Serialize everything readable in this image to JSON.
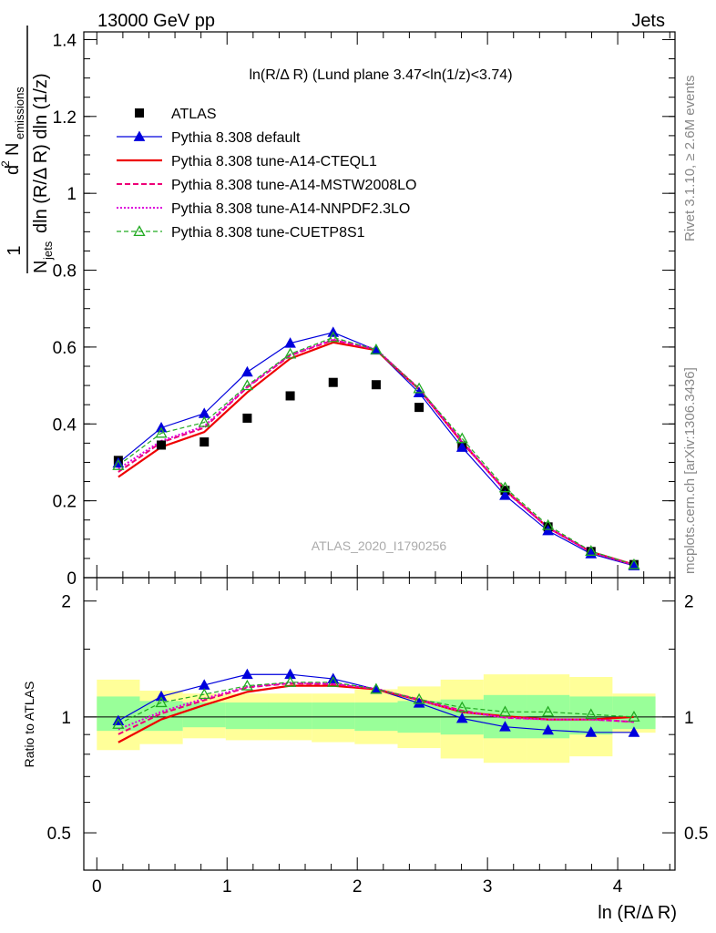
{
  "header": {
    "left": "13000 GeV pp",
    "right": "Jets",
    "side_top": "Rivet 3.1.10, ≥ 2.6M events",
    "side_bottom": "mcplots.cern.ch [arXiv:1306.3436]",
    "watermark": "ATLAS_2020_I1790256"
  },
  "main_panel": {
    "title": "ln(R/Δ R) (Lund plane 3.47<ln(1/z)<3.74)",
    "ylabel": "1/N_jets d²N_emissions / dln(R/Δ R) dln(1/z)",
    "ylabel_parts": {
      "one": "1",
      "d2": "d",
      "two": "2",
      "n": "N",
      "emissions": "emissions",
      "njets_n": "N",
      "jets": "jets",
      "rest": "dln (R/Δ R) dln (1/z)"
    },
    "ylim": [
      0,
      1.42
    ],
    "yticks": [
      "0",
      "0.2",
      "0.4",
      "0.6",
      "0.8",
      "1",
      "1.2",
      "1.4"
    ]
  },
  "ratio_panel": {
    "ylabel": "Ratio to ATLAS",
    "ylim": [
      0.4,
      2.3
    ],
    "yticks": [
      "0.5",
      "1",
      "2"
    ]
  },
  "xaxis": {
    "label": "ln (R/Δ R)",
    "ticks": [
      "0",
      "1",
      "2",
      "3",
      "4"
    ],
    "xlim": [
      -0.1,
      4.44
    ]
  },
  "chart_data": {
    "type": "line",
    "x": [
      0.165,
      0.495,
      0.825,
      1.155,
      1.485,
      1.815,
      2.145,
      2.475,
      2.805,
      3.135,
      3.465,
      3.795,
      4.125
    ],
    "bin_edges": [
      0.0,
      0.33,
      0.66,
      0.99,
      1.32,
      1.65,
      1.98,
      2.31,
      2.64,
      2.97,
      3.3,
      3.63,
      3.96,
      4.29
    ],
    "data": {
      "name": "ATLAS",
      "values": [
        0.305,
        0.345,
        0.353,
        0.415,
        0.473,
        0.508,
        0.502,
        0.443,
        0.342,
        0.227,
        0.132,
        0.068,
        0.034
      ]
    },
    "series": [
      {
        "name": "Pythia 8.308 default",
        "color": "#0000dd",
        "style": "solid-triangle",
        "values": [
          0.298,
          0.39,
          0.427,
          0.535,
          0.61,
          0.638,
          0.592,
          0.481,
          0.339,
          0.214,
          0.122,
          0.062,
          0.031
        ]
      },
      {
        "name": "Pythia 8.308 tune-A14-CTEQL1",
        "color": "#ee0000",
        "style": "solid-thick",
        "values": [
          0.262,
          0.34,
          0.379,
          0.482,
          0.57,
          0.612,
          0.592,
          0.49,
          0.352,
          0.228,
          0.13,
          0.067,
          0.034
        ]
      },
      {
        "name": "Pythia 8.308 tune-A14-MSTW2008LO",
        "color": "#ee0077",
        "style": "dashed",
        "values": [
          0.275,
          0.352,
          0.39,
          0.495,
          0.578,
          0.618,
          0.593,
          0.492,
          0.355,
          0.226,
          0.13,
          0.067,
          0.033
        ]
      },
      {
        "name": "Pythia 8.308 tune-A14-NNPDF2.3LO",
        "color": "#dd00dd",
        "style": "dotted",
        "values": [
          0.283,
          0.356,
          0.394,
          0.497,
          0.58,
          0.62,
          0.595,
          0.49,
          0.353,
          0.226,
          0.13,
          0.067,
          0.033
        ]
      },
      {
        "name": "Pythia 8.308 tune-CUETP8S1",
        "color": "#22aa22",
        "style": "dashed-open-triangle",
        "values": [
          0.292,
          0.376,
          0.404,
          0.5,
          0.582,
          0.625,
          0.593,
          0.492,
          0.362,
          0.234,
          0.136,
          0.069,
          0.034
        ]
      }
    ],
    "ratio_band_inner": [
      [
        0.92,
        1.13
      ],
      [
        0.92,
        1.1
      ],
      [
        0.94,
        1.09
      ],
      [
        0.93,
        1.09
      ],
      [
        0.93,
        1.09
      ],
      [
        0.93,
        1.09
      ],
      [
        0.92,
        1.09
      ],
      [
        0.91,
        1.1
      ],
      [
        0.9,
        1.11
      ],
      [
        0.88,
        1.14
      ],
      [
        0.88,
        1.14
      ],
      [
        0.9,
        1.13
      ],
      [
        0.93,
        1.13
      ]
    ],
    "ratio_band_outer": [
      [
        0.82,
        1.25
      ],
      [
        0.85,
        1.17
      ],
      [
        0.88,
        1.15
      ],
      [
        0.87,
        1.15
      ],
      [
        0.87,
        1.15
      ],
      [
        0.86,
        1.15
      ],
      [
        0.85,
        1.18
      ],
      [
        0.83,
        1.2
      ],
      [
        0.78,
        1.25
      ],
      [
        0.76,
        1.29
      ],
      [
        0.76,
        1.29
      ],
      [
        0.79,
        1.27
      ],
      [
        0.91,
        1.15
      ]
    ],
    "ylim": [
      0,
      1.42
    ],
    "grid": false,
    "legend_placement": "top-left"
  }
}
